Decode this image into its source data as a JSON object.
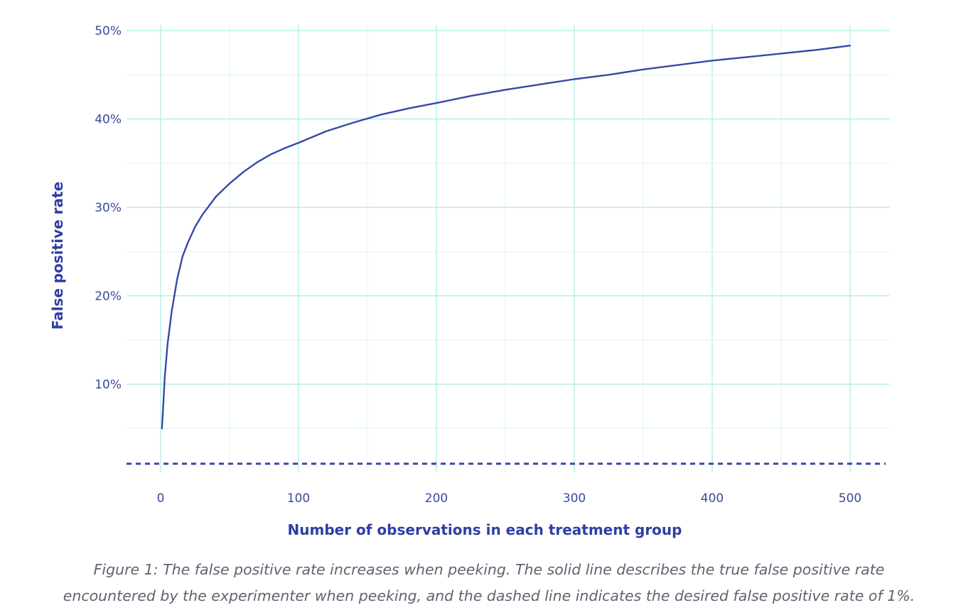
{
  "chart_data": {
    "type": "line",
    "xlabel": "Number of observations in each treatment group",
    "ylabel": "False positive rate",
    "xlim": [
      -25,
      525
    ],
    "ylim": [
      0,
      50.5
    ],
    "x_ticks": [
      {
        "value": 0,
        "label": "0"
      },
      {
        "value": 100,
        "label": "100"
      },
      {
        "value": 200,
        "label": "200"
      },
      {
        "value": 300,
        "label": "300"
      },
      {
        "value": 400,
        "label": "400"
      },
      {
        "value": 500,
        "label": "500"
      }
    ],
    "y_ticks": [
      {
        "value": 10,
        "label": "10%"
      },
      {
        "value": 20,
        "label": "20%"
      },
      {
        "value": 30,
        "label": "30%"
      },
      {
        "value": 40,
        "label": "40%"
      },
      {
        "value": 50,
        "label": "50%"
      }
    ],
    "x_minor_ticks": [
      50,
      150,
      250,
      350,
      450
    ],
    "y_minor_ticks": [
      5,
      15,
      25,
      35,
      45
    ],
    "grid": true,
    "series": [
      {
        "style": "solid",
        "color": "#3848a8",
        "x": [
          1,
          3,
          5,
          8,
          12,
          16,
          20,
          25,
          30,
          40,
          50,
          60,
          70,
          80,
          90,
          100,
          120,
          140,
          160,
          180,
          200,
          225,
          250,
          275,
          300,
          325,
          350,
          375,
          400,
          425,
          450,
          475,
          500
        ],
        "y": [
          5.0,
          10.8,
          14.5,
          18.2,
          21.9,
          24.5,
          26.1,
          27.8,
          29.1,
          31.2,
          32.7,
          34.0,
          35.1,
          36.0,
          36.7,
          37.3,
          38.6,
          39.6,
          40.5,
          41.2,
          41.8,
          42.6,
          43.3,
          43.9,
          44.5,
          45.0,
          45.6,
          46.1,
          46.6,
          47.0,
          47.4,
          47.8,
          48.3
        ]
      },
      {
        "style": "dashed",
        "color": "#3848a8",
        "x": [
          -25,
          525
        ],
        "y": [
          1,
          1
        ]
      }
    ]
  },
  "caption": {
    "lead": "Figure 1:",
    "line1": " The false positive rate increases when peeking. The solid line describes the true false positive rate",
    "line2": "encountered by the experimenter when peeking, and the dashed line indicates the desired false positive rate of 1%."
  }
}
